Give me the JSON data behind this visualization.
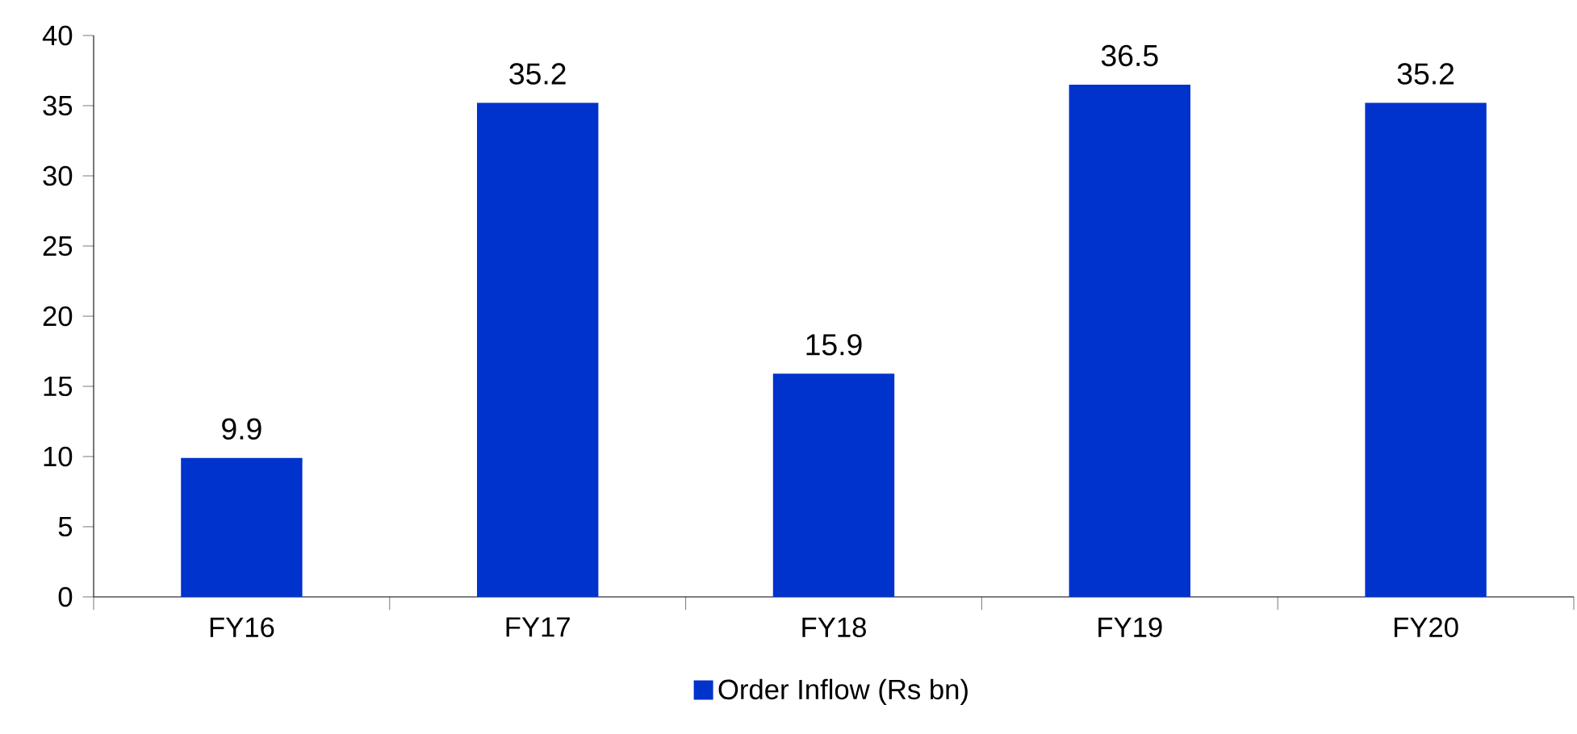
{
  "chart_data": {
    "type": "bar",
    "categories": [
      "FY16",
      "FY17",
      "FY18",
      "FY19",
      "FY20"
    ],
    "series": [
      {
        "name": "Order Inflow (Rs bn)",
        "color": "#0033cc",
        "values": [
          9.9,
          35.2,
          15.9,
          36.5,
          35.2
        ]
      }
    ],
    "ylim": [
      0,
      40
    ],
    "yticks": [
      0,
      5,
      10,
      15,
      20,
      25,
      30,
      35,
      40
    ],
    "data_labels": true,
    "legend": "bottom",
    "grid": false
  }
}
